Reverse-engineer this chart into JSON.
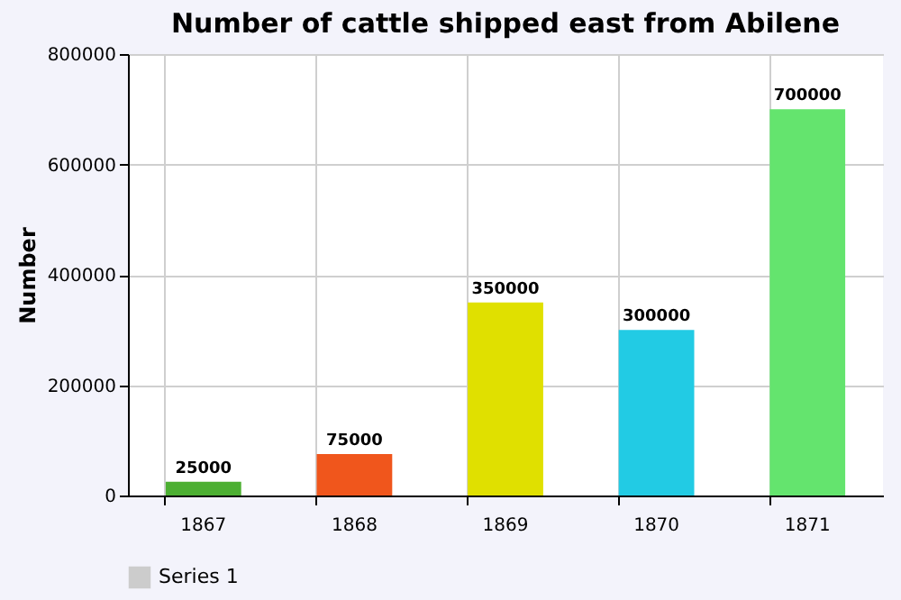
{
  "chart_data": {
    "type": "bar",
    "title": "Number of cattle shipped east from Abilene",
    "ylabel": "Number",
    "categories": [
      "1867",
      "1868",
      "1869",
      "1870",
      "1871"
    ],
    "series": [
      {
        "name": "Series 1",
        "color": "#cccccc",
        "values": [
          25000,
          75000,
          350000,
          300000,
          700000
        ],
        "colors": [
          "#4caf32",
          "#f0561c",
          "#e0e000",
          "#22cbe4",
          "#64e46e"
        ]
      }
    ],
    "ylim": [
      0,
      800000
    ],
    "yticks": [
      0,
      200000,
      400000,
      600000,
      800000
    ],
    "grid": true,
    "legend": "bottom",
    "data_labels": true
  }
}
